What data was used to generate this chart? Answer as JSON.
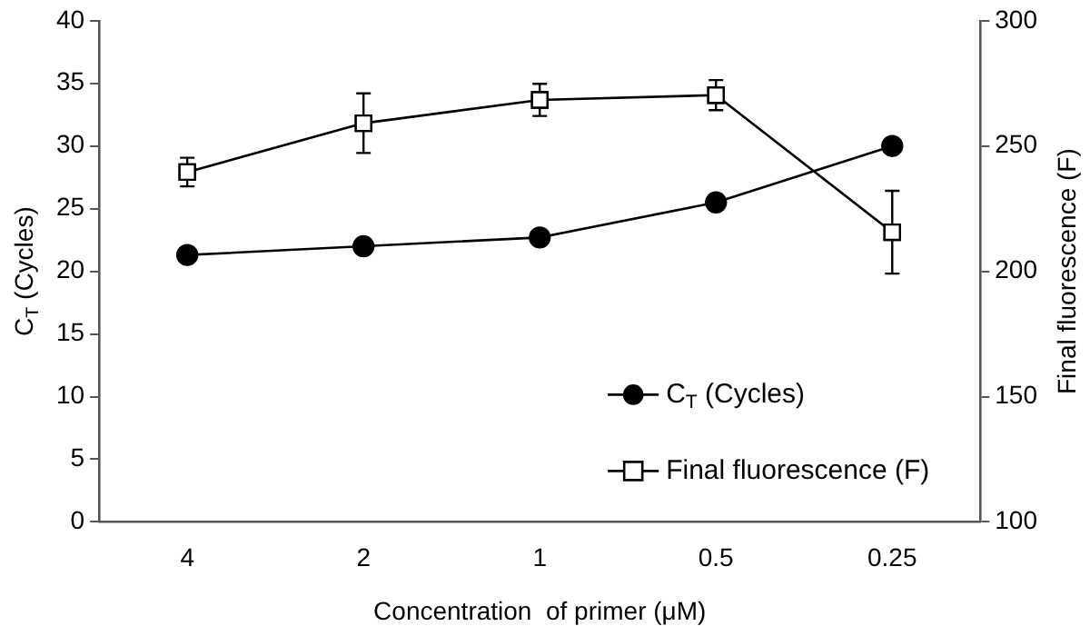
{
  "chart_data": {
    "type": "line",
    "xlabel": "Concentration  of primer (μM)",
    "ylabel": "C$_{T}$ (Cycles)",
    "y2label": "Final fluorescence (F)",
    "categories": [
      "4",
      "2",
      "1",
      "0.5",
      "0.25"
    ],
    "series": [
      {
        "name": "C$_{T}$ (Cycles)",
        "color": "#000000",
        "marker": "circle",
        "values": [
          21.3,
          22.0,
          22.7,
          25.5,
          30.0
        ]
      },
      {
        "name": "Final fluorescence (F)",
        "color": "#000000",
        "marker": "square",
        "axis": "y2",
        "values": [
          239.6,
          259.1,
          268.4,
          270.3,
          215.6
        ],
        "errors": [
          5.7,
          11.9,
          6.4,
          6,
          16.5
        ]
      }
    ],
    "ylim": [
      0,
      40
    ],
    "yticks": [
      0,
      5,
      10,
      15,
      20,
      25,
      30,
      35,
      40
    ],
    "y2lim": [
      100,
      300
    ],
    "y2ticks": [
      100,
      150,
      200,
      250,
      300
    ],
    "grid": false,
    "legend": "bottom right",
    "line_style": "solid"
  }
}
